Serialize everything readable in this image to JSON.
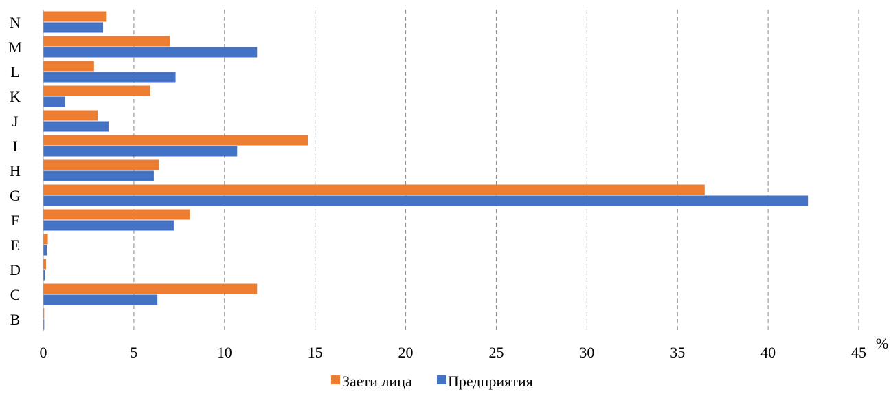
{
  "chart_data": {
    "type": "bar",
    "orientation": "horizontal",
    "categories": [
      "B",
      "C",
      "D",
      "E",
      "F",
      "G",
      "H",
      "I",
      "J",
      "K",
      "L",
      "M",
      "N"
    ],
    "series": [
      {
        "name": "Заети лица",
        "color": "#ED7D31",
        "values": [
          0.05,
          11.8,
          0.15,
          0.25,
          8.1,
          36.5,
          6.4,
          14.6,
          3.0,
          5.9,
          2.8,
          7.0,
          3.5
        ]
      },
      {
        "name": "Предприятия",
        "color": "#4472C4",
        "values": [
          0.05,
          6.3,
          0.1,
          0.2,
          7.2,
          42.2,
          6.1,
          10.7,
          3.6,
          1.2,
          7.3,
          11.8,
          3.3
        ]
      }
    ],
    "xlim": [
      0,
      45
    ],
    "xticks": [
      0,
      5,
      10,
      15,
      20,
      25,
      30,
      35,
      40,
      45
    ],
    "xunit": "%",
    "grid": "vertical-dashed",
    "legend": "bottom-center"
  }
}
